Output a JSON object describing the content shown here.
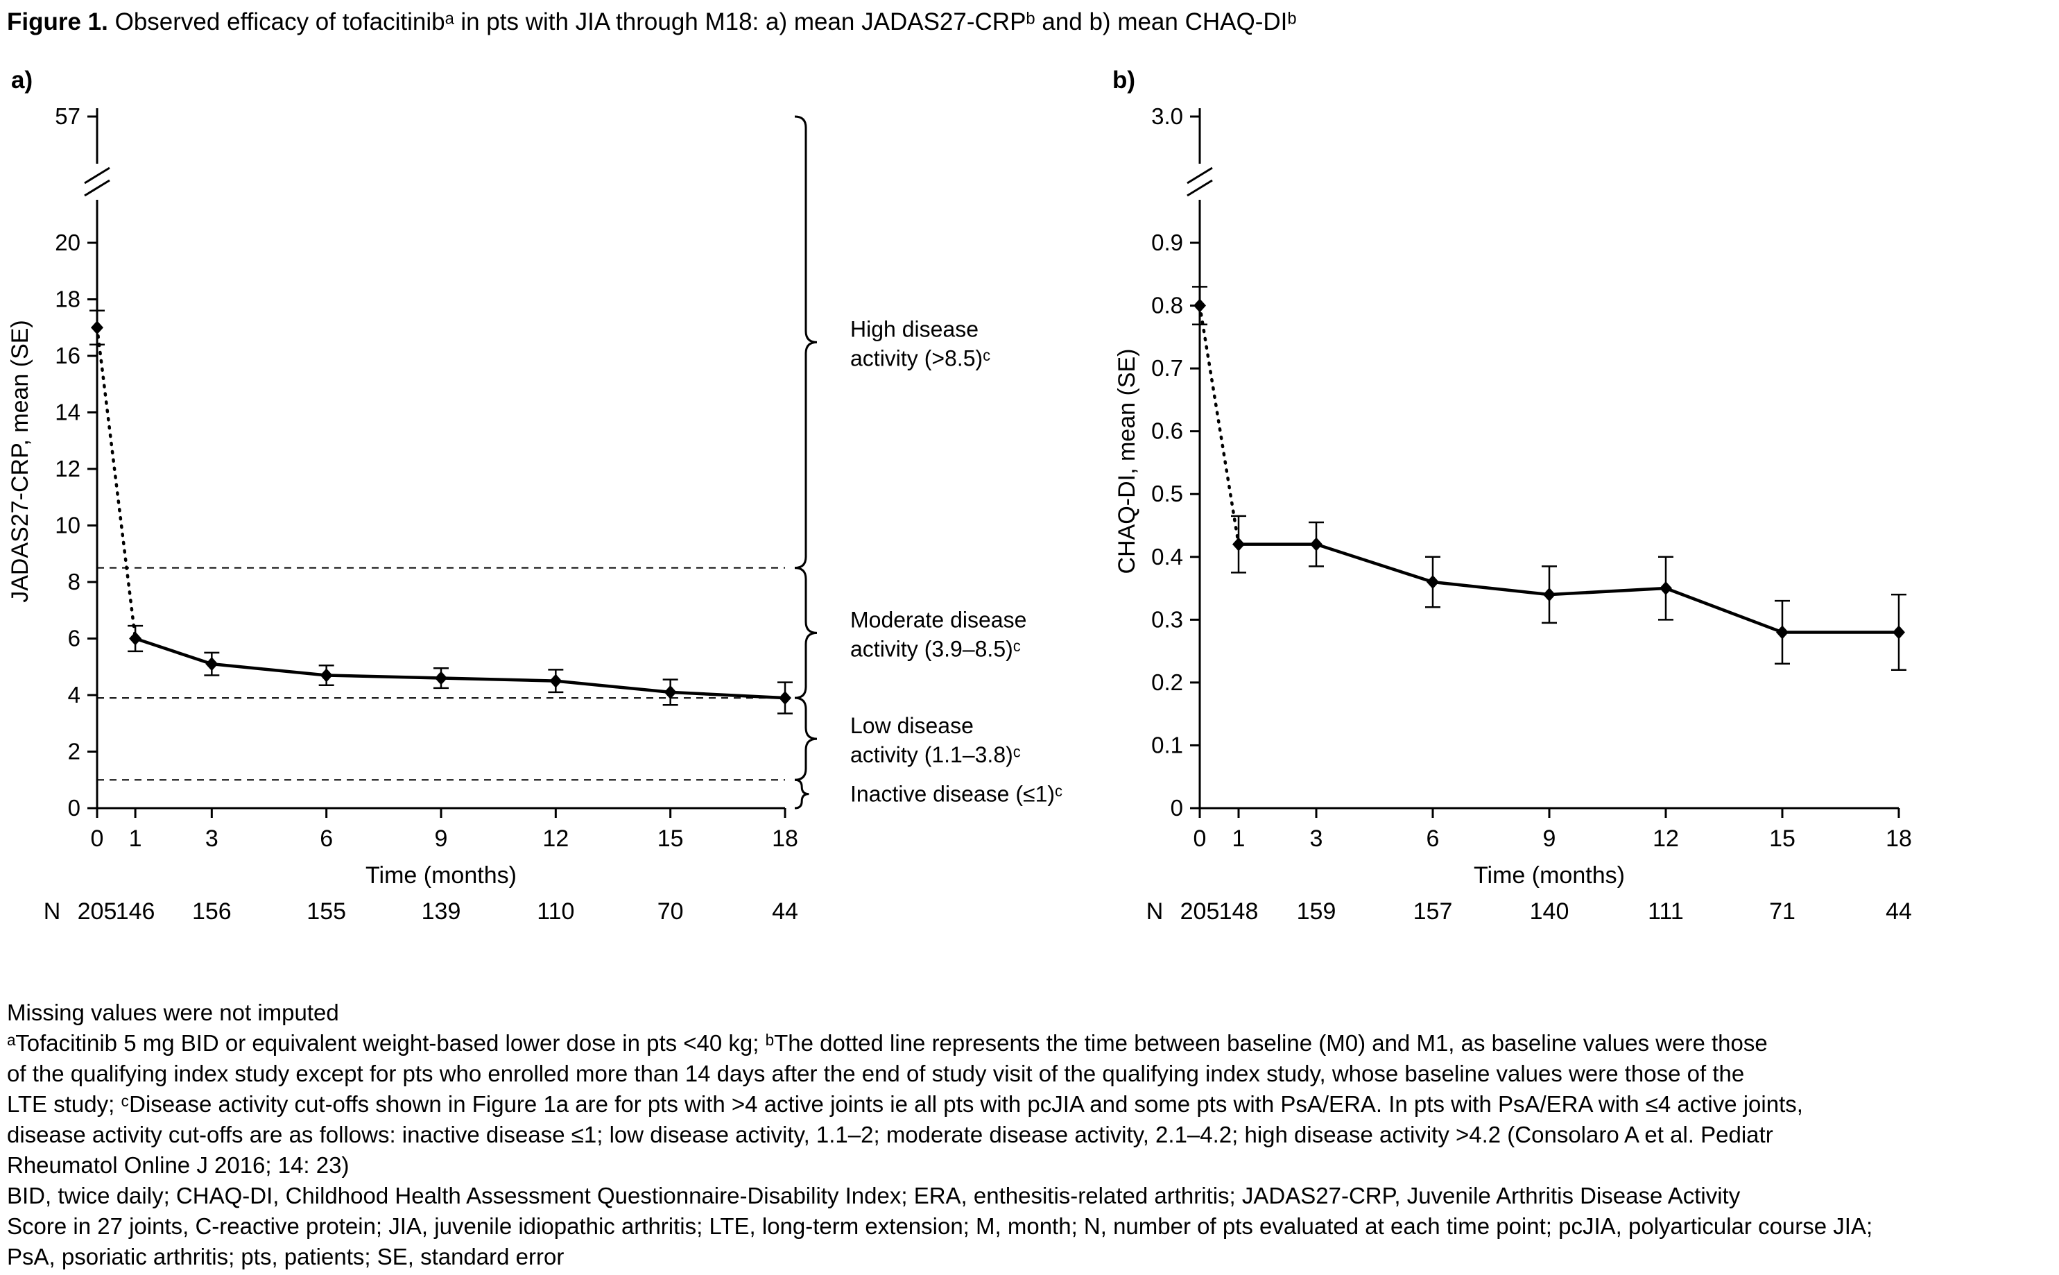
{
  "title": {
    "prefix": "Figure 1.",
    "rest": " Observed efficacy of tofacitinibᵃ in pts with JIA through M18: a) mean JADAS27-CRPᵇ and b) mean CHAQ-DIᵇ"
  },
  "panels": {
    "a": {
      "label": "a)"
    },
    "b": {
      "label": "b)"
    }
  },
  "chart_data": [
    {
      "type": "line",
      "panel": "a",
      "title": "a) mean JADAS27-CRP",
      "ylabel": "JADAS27-CRP, mean (SE)",
      "xlabel": "Time (months)",
      "x": [
        0,
        1,
        3,
        6,
        9,
        12,
        15,
        18
      ],
      "xticklabels": [
        "0",
        "1",
        "3",
        "6",
        "9",
        "12",
        "15",
        "18"
      ],
      "series": [
        {
          "name": "JADAS27-CRP mean (SE)",
          "values": [
            17.0,
            6.0,
            5.1,
            4.7,
            4.6,
            4.5,
            4.1,
            3.9
          ],
          "se": [
            0.6,
            0.45,
            0.4,
            0.35,
            0.35,
            0.4,
            0.45,
            0.55
          ]
        }
      ],
      "style": {
        "first_segment": "dotted",
        "marker": "diamond",
        "color": "#000000"
      },
      "yticks": [
        0,
        2,
        4,
        6,
        8,
        10,
        12,
        14,
        16,
        18,
        20
      ],
      "yticklabels": [
        "0",
        "2",
        "4",
        "6",
        "8",
        "10",
        "12",
        "14",
        "16",
        "18",
        "20"
      ],
      "axis_break": true,
      "ybreak_label": "57",
      "ylim": [
        0,
        57
      ],
      "grid": false,
      "legend": "none",
      "reference_lines": [
        8.5,
        3.9,
        1.0
      ],
      "bands": [
        {
          "lines": [
            "High disease activity",
            "activity (>8.5)ᶜ"
          ],
          "from": "top",
          "to": 8.5
        },
        {
          "lines": [
            "Moderate disease activity",
            "activity (3.9–8.5)ᶜ"
          ],
          "from": 8.5,
          "to": 3.9
        },
        {
          "lines": [
            "Low disease activity",
            "activity (1.1–3.8)ᶜ"
          ],
          "from": 3.9,
          "to": 1.0
        },
        {
          "lines": [
            "Inactive disease (≤1)ᶜ"
          ],
          "from": 1.0,
          "to": 0
        }
      ],
      "band_label_texts": [
        "High disease activity (>8.5)ᶜ",
        "Moderate disease activity (3.9–8.5)ᶜ",
        "Low disease activity (1.1–3.8)ᶜ",
        "Inactive disease (≤1)ᶜ"
      ],
      "n_row": {
        "label": "N",
        "values": [
          "205",
          "146",
          "156",
          "155",
          "139",
          "110",
          "70",
          "44"
        ]
      }
    },
    {
      "type": "line",
      "panel": "b",
      "title": "b) mean CHAQ-DI",
      "ylabel": "CHAQ-DI, mean (SE)",
      "xlabel": "Time (months)",
      "x": [
        0,
        1,
        3,
        6,
        9,
        12,
        15,
        18
      ],
      "xticklabels": [
        "0",
        "1",
        "3",
        "6",
        "9",
        "12",
        "15",
        "18"
      ],
      "series": [
        {
          "name": "CHAQ-DI mean (SE)",
          "values": [
            0.8,
            0.42,
            0.42,
            0.36,
            0.34,
            0.35,
            0.28,
            0.28
          ],
          "se": [
            0.03,
            0.045,
            0.035,
            0.04,
            0.045,
            0.05,
            0.05,
            0.06
          ]
        }
      ],
      "style": {
        "first_segment": "dotted",
        "marker": "diamond",
        "color": "#000000"
      },
      "yticks": [
        0,
        0.1,
        0.2,
        0.3,
        0.4,
        0.5,
        0.6,
        0.7,
        0.8,
        0.9
      ],
      "yticklabels": [
        "0",
        "0.1",
        "0.2",
        "0.3",
        "0.4",
        "0.5",
        "0.6",
        "0.7",
        "0.8",
        "0.9"
      ],
      "axis_break": true,
      "ybreak_label": "3.0",
      "ylim": [
        0,
        3.0
      ],
      "grid": false,
      "legend": "none",
      "reference_lines": [],
      "bands": [],
      "n_row": {
        "label": "N",
        "values": [
          "205",
          "148",
          "159",
          "157",
          "140",
          "111",
          "71",
          "44"
        ]
      }
    }
  ],
  "footnotes": {
    "lines": [
      "Missing values were not imputed",
      "ᵃTofacitinib 5 mg BID or equivalent weight-based lower dose in pts <40 kg; ᵇThe dotted line represents the time between baseline (M0) and M1, as baseline values were those",
      "of the qualifying index study except for pts who enrolled more than 14 days after the end of study visit of the qualifying index study, whose baseline values were those of the",
      "LTE study; ᶜDisease activity cut-offs shown in Figure 1a are for pts with >4 active joints ie all pts with pcJIA and some pts with PsA/ERA. In pts with PsA/ERA with ≤4 active joints,",
      "disease activity cut-offs are as follows: inactive disease ≤1; low disease activity, 1.1–2; moderate disease activity, 2.1–4.2; high disease activity >4.2 (Consolaro A et al. Pediatr",
      "Rheumatol Online J 2016; 14: 23)",
      "BID, twice daily; CHAQ-DI, Childhood Health Assessment Questionnaire-Disability Index; ERA, enthesitis-related arthritis; JADAS27-CRP, Juvenile Arthritis Disease Activity",
      "Score in 27 joints, C-reactive protein; JIA, juvenile idiopathic arthritis; LTE, long-term extension; M, month; N, number of pts evaluated at each time point; pcJIA, polyarticular course JIA;",
      "PsA, psoriatic arthritis; pts, patients; SE, standard error"
    ]
  }
}
